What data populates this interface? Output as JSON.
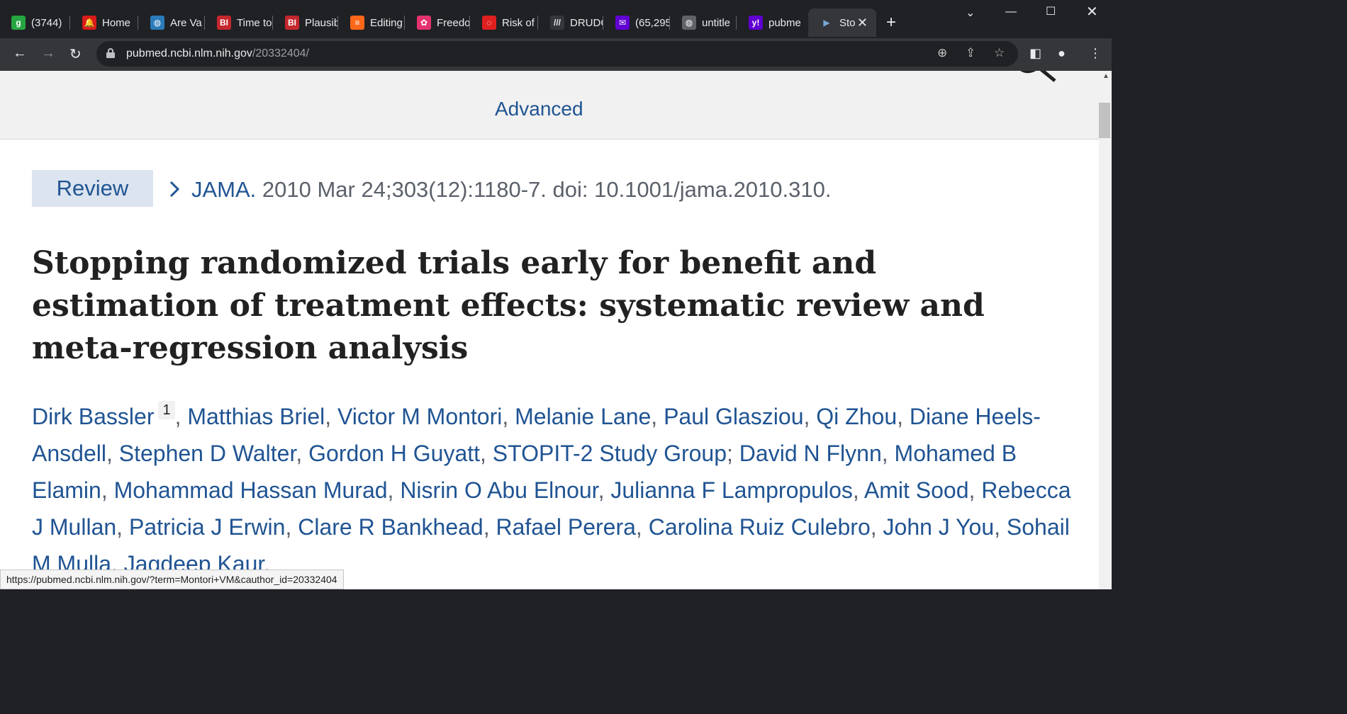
{
  "browser": {
    "tabs": [
      {
        "label": "(3744)",
        "favicon": "g",
        "fav_color": "#26a641",
        "fav_text": "#ffffff"
      },
      {
        "label": "Home",
        "favicon": "bell",
        "fav_color": "#d81b1b",
        "fav_text": "#ffffff"
      },
      {
        "label": "Are Va",
        "favicon": "globe",
        "fav_color": "#2b7bb9",
        "fav_text": "#ffffff"
      },
      {
        "label": "Time to",
        "favicon": "BI",
        "fav_color": "#c4272d",
        "fav_text": "#ffffff"
      },
      {
        "label": "Plausib",
        "favicon": "BI",
        "fav_color": "#c4272d",
        "fav_text": "#ffffff"
      },
      {
        "label": "Editing",
        "favicon": "substack",
        "fav_color": "#ff6719",
        "fav_text": "#ffffff"
      },
      {
        "label": "Freedo",
        "favicon": "flower",
        "fav_color": "#e4326f",
        "fav_text": "#ffffff"
      },
      {
        "label": "Risk of",
        "favicon": "ring",
        "fav_color": "#e02020",
        "fav_text": "#ffffff"
      },
      {
        "label": "DRUDG",
        "favicon": "drudge",
        "fav_color": "#35363a",
        "fav_text": "#e8eaed"
      },
      {
        "label": "(65,295",
        "favicon": "mail",
        "fav_color": "#6001d2",
        "fav_text": "#ffffff"
      },
      {
        "label": "untitle",
        "favicon": "world",
        "fav_color": "#5f6368",
        "fav_text": "#ffffff"
      },
      {
        "label": "pubme",
        "favicon": "y!",
        "fav_color": "#6001d2",
        "fav_text": "#ffffff"
      },
      {
        "label": "Sto",
        "favicon": "pubmed",
        "fav_color": "#35363a",
        "fav_text": "#7aa7d8"
      }
    ],
    "active_tab_index": 12,
    "url_host": "pubmed.ncbi.nlm.nih.gov",
    "url_path": "/20332404/",
    "status_url": "https://pubmed.ncbi.nlm.nih.gov/?term=Montori+VM&cauthor_id=20332404"
  },
  "page": {
    "advanced_link": "Advanced",
    "publication_type": "Review",
    "citation": {
      "journal": "JAMA.",
      "details": " 2010 Mar 24;303(12):1180-7. doi: 10.1001/jama.2010.310."
    },
    "title": "Stopping randomized trials early for benefit and estimation of treatment effects: systematic review and meta-regression analysis",
    "authors": [
      {
        "name": "Dirk Bassler",
        "aff": "1"
      },
      {
        "name": "Matthias Briel"
      },
      {
        "name": "Victor M Montori"
      },
      {
        "name": "Melanie Lane"
      },
      {
        "name": "Paul Glasziou"
      },
      {
        "name": "Qi Zhou"
      },
      {
        "name": "Diane Heels-Ansdell"
      },
      {
        "name": "Stephen D Walter"
      },
      {
        "name": "Gordon H Guyatt"
      },
      {
        "name": "STOPIT-2 Study Group",
        "end": ";"
      },
      {
        "name": "David N Flynn"
      },
      {
        "name": "Mohamed B Elamin"
      },
      {
        "name": "Mohammad Hassan Murad"
      },
      {
        "name": "Nisrin O Abu Elnour"
      },
      {
        "name": "Julianna F Lampropulos"
      },
      {
        "name": "Amit Sood"
      },
      {
        "name": "Rebecca J Mullan"
      },
      {
        "name": "Patricia J Erwin"
      },
      {
        "name": "Clare R Bankhead"
      },
      {
        "name": "Rafael Perera"
      },
      {
        "name": "Carolina Ruiz Culebro"
      },
      {
        "name": "John J You"
      },
      {
        "name": "Sohail M Mulla"
      },
      {
        "name": "Jagdeep Kaur"
      }
    ]
  },
  "colors": {
    "link": "#205493",
    "text": "#5b616b",
    "title": "#212121",
    "badge_bg": "#dce4ef"
  }
}
